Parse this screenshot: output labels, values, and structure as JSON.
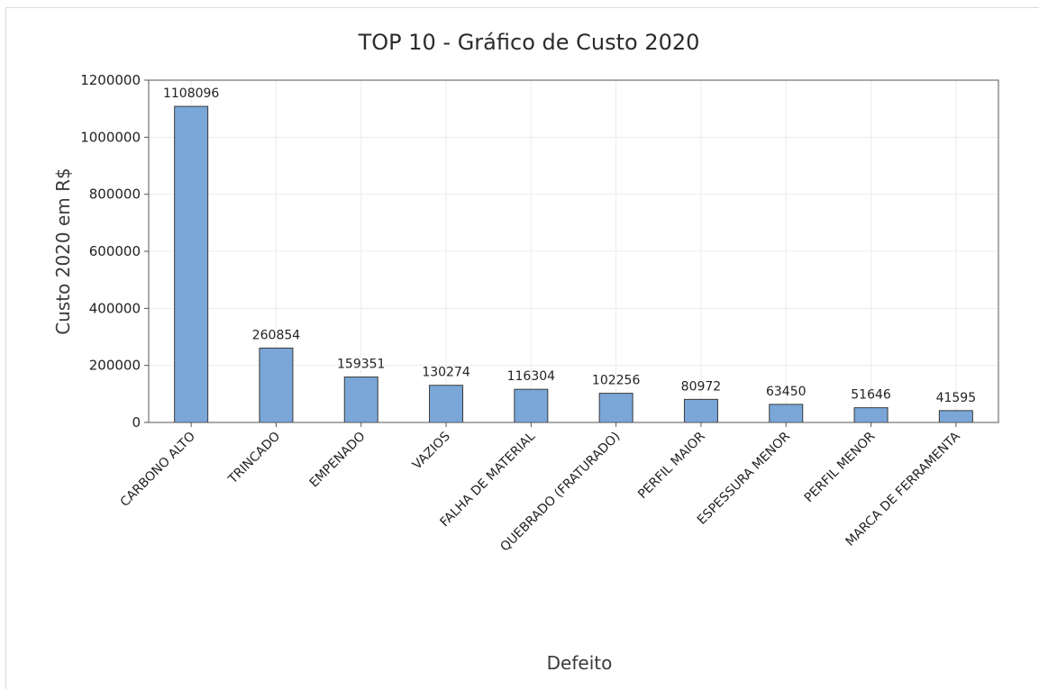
{
  "chart_data": {
    "type": "bar",
    "title": "TOP 10 - Gráfico de Custo 2020",
    "xlabel": "Defeito",
    "ylabel": "Custo 2020 em R$",
    "categories": [
      "CARBONO ALTO",
      "TRINCADO",
      "EMPENADO",
      "VAZIOS",
      "FALHA DE MATERIAL",
      "QUEBRADO (FRATURADO)",
      "PERFIL MAIOR",
      "ESPESSURA MENOR",
      "PERFIL MENOR",
      "MARCA DE FERRAMENTA"
    ],
    "values": [
      1108096,
      260854,
      159351,
      130274,
      116304,
      102256,
      80972,
      63450,
      51646,
      41595
    ],
    "data_labels": [
      "1108096",
      "260854",
      "159351",
      "130274",
      "116304",
      "102256",
      "80972",
      "63450",
      "51646",
      "41595"
    ],
    "ylim": [
      0,
      1200000
    ],
    "yticks": [
      0,
      200000,
      400000,
      600000,
      800000,
      1000000,
      1200000
    ],
    "ytick_labels": [
      "0",
      "200000",
      "400000",
      "600000",
      "800000",
      "1000000",
      "1200000"
    ],
    "grid": true,
    "colors": {
      "bar": "#7aa6d8",
      "bar_edge": "#3a3a3a",
      "grid": "#ececec",
      "axis": "#555555"
    }
  }
}
